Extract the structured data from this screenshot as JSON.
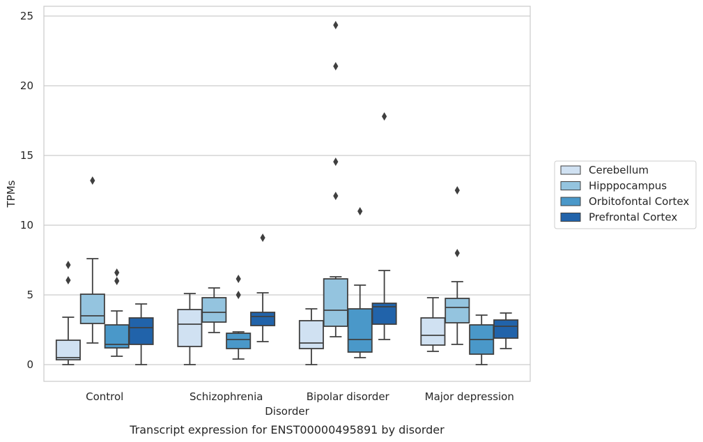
{
  "chart_data": {
    "type": "box",
    "title": "Transcript expression for ENST00000495891 by disorder",
    "xlabel": "Disorder",
    "ylabel": "TPMs",
    "ylim": [
      -1.2,
      25.7
    ],
    "yticks": [
      0,
      5,
      10,
      15,
      20,
      25
    ],
    "grid": true,
    "legend_position": "right",
    "categories": [
      "Control",
      "Schizophrenia",
      "Bipolar disorder",
      "Major depression"
    ],
    "series": [
      {
        "name": "Cerebellum",
        "color": "#d0e1f2",
        "boxes": [
          {
            "whislo": 0.0,
            "q1": 0.35,
            "med": 0.5,
            "q3": 1.75,
            "whishi": 3.4,
            "fliers": [
              6.05,
              7.15
            ]
          },
          {
            "whislo": 0.0,
            "q1": 1.3,
            "med": 2.9,
            "q3": 3.95,
            "whishi": 5.1,
            "fliers": []
          },
          {
            "whislo": 0.0,
            "q1": 1.15,
            "med": 1.55,
            "q3": 3.15,
            "whishi": 4.0,
            "fliers": []
          },
          {
            "whislo": 0.95,
            "q1": 1.4,
            "med": 2.1,
            "q3": 3.35,
            "whishi": 4.8,
            "fliers": []
          }
        ]
      },
      {
        "name": "Hipppocampus",
        "color": "#94c4df",
        "boxes": [
          {
            "whislo": 1.55,
            "q1": 2.95,
            "med": 3.5,
            "q3": 5.05,
            "whishi": 7.6,
            "fliers": [
              13.2
            ]
          },
          {
            "whislo": 2.3,
            "q1": 3.05,
            "med": 3.75,
            "q3": 4.8,
            "whishi": 5.5,
            "fliers": []
          },
          {
            "whislo": 2.0,
            "q1": 2.75,
            "med": 3.9,
            "q3": 6.15,
            "whishi": 6.3,
            "fliers": [
              12.1,
              14.55,
              21.4,
              24.35
            ]
          },
          {
            "whislo": 1.45,
            "q1": 3.0,
            "med": 4.1,
            "q3": 4.75,
            "whishi": 5.95,
            "fliers": [
              8.0,
              12.5
            ]
          }
        ]
      },
      {
        "name": "Orbitofontal Cortex",
        "color": "#4a98c9",
        "boxes": [
          {
            "whislo": 0.6,
            "q1": 1.2,
            "med": 1.45,
            "q3": 2.85,
            "whishi": 3.85,
            "fliers": [
              6.0,
              6.6
            ]
          },
          {
            "whislo": 0.4,
            "q1": 1.15,
            "med": 1.8,
            "q3": 2.25,
            "whishi": 2.35,
            "fliers": [
              5.0,
              6.15
            ]
          },
          {
            "whislo": 0.5,
            "q1": 0.9,
            "med": 1.8,
            "q3": 4.0,
            "whishi": 5.7,
            "fliers": [
              11.0
            ]
          },
          {
            "whislo": 0.0,
            "q1": 0.75,
            "med": 1.8,
            "q3": 2.85,
            "whishi": 3.55,
            "fliers": []
          }
        ]
      },
      {
        "name": "Prefrontal Cortex",
        "color": "#2163aa",
        "boxes": [
          {
            "whislo": 0.0,
            "q1": 1.45,
            "med": 2.65,
            "q3": 3.35,
            "whishi": 4.35,
            "fliers": []
          },
          {
            "whislo": 1.65,
            "q1": 2.8,
            "med": 3.45,
            "q3": 3.75,
            "whishi": 5.15,
            "fliers": [
              9.1
            ]
          },
          {
            "whislo": 1.8,
            "q1": 2.9,
            "med": 4.15,
            "q3": 4.4,
            "whishi": 6.75,
            "fliers": [
              17.8
            ]
          },
          {
            "whislo": 1.15,
            "q1": 1.9,
            "med": 2.75,
            "q3": 3.2,
            "whishi": 3.7,
            "fliers": []
          }
        ]
      }
    ]
  }
}
